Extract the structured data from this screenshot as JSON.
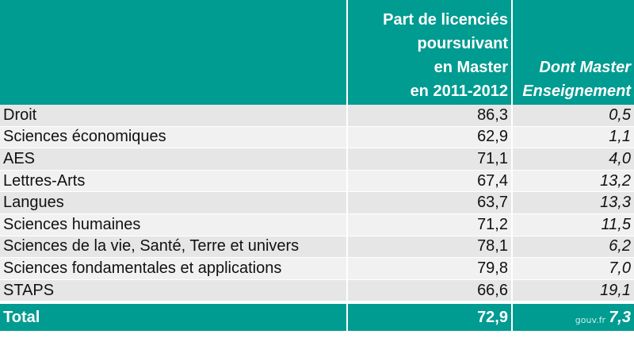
{
  "header": {
    "col1": "",
    "col2_lines": [
      "Part de licenciés",
      "poursuivant",
      "en Master",
      "en 2011-2012"
    ],
    "col3_lines": [
      "Dont Master",
      "Enseignement"
    ]
  },
  "rows": [
    {
      "label": "Droit",
      "part": "86,3",
      "dont": "0,5"
    },
    {
      "label": "Sciences économiques",
      "part": "62,9",
      "dont": "1,1"
    },
    {
      "label": "AES",
      "part": "71,1",
      "dont": "4,0"
    },
    {
      "label": "Lettres-Arts",
      "part": "67,4",
      "dont": "13,2"
    },
    {
      "label": "Langues",
      "part": "63,7",
      "dont": "13,3"
    },
    {
      "label": "Sciences humaines",
      "part": "71,2",
      "dont": "11,5"
    },
    {
      "label": "Sciences de la vie, Santé, Terre et univers",
      "part": "78,1",
      "dont": "6,2"
    },
    {
      "label": "Sciences fondamentales et applications",
      "part": "79,8",
      "dont": "7,0"
    },
    {
      "label": "STAPS",
      "part": "66,6",
      "dont": "19,1"
    }
  ],
  "total": {
    "label": "Total",
    "part": "72,9",
    "dont": "7,3"
  },
  "watermark": "gouv.fr",
  "colors": {
    "header_bg": "#009b91",
    "row_bg": "#e6e6e6"
  }
}
